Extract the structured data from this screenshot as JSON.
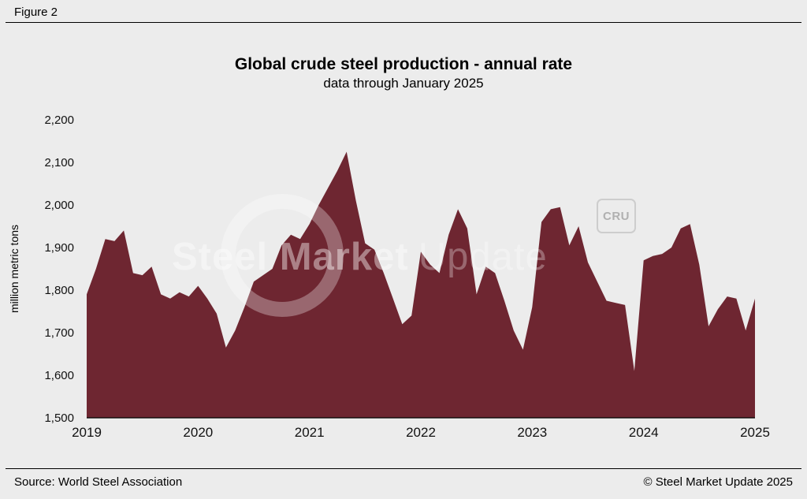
{
  "figure_label": "Figure 2",
  "header": {
    "title": "Global crude steel production - annual rate",
    "subtitle": "data through January 2025"
  },
  "watermark": {
    "text_primary": "Steel Market",
    "text_secondary": "Update",
    "badge": "CRU"
  },
  "footer": {
    "source": "Source: World Steel Association",
    "copyright": "© Steel Market Update 2025"
  },
  "colors": {
    "background": "#ececec",
    "area": "#6e2631",
    "axis": "#000000",
    "text": "#111111"
  },
  "chart_data": {
    "type": "area",
    "title": "Global crude steel production - annual rate",
    "subtitle": "data through January 2025",
    "ylabel": "million metric tons",
    "xlabel": "",
    "ylim": [
      1500,
      2200
    ],
    "yticks": [
      1500,
      1600,
      1700,
      1800,
      1900,
      2000,
      2100,
      2200
    ],
    "x_tick_years": [
      "2019",
      "2020",
      "2021",
      "2022",
      "2023",
      "2024",
      "2025"
    ],
    "x_start": "2019-01",
    "x_end": "2025-01",
    "grid": false,
    "legend": "none",
    "series_name": "Global crude steel production, annualized rate (million metric tons)",
    "values": [
      1790,
      1850,
      1920,
      1915,
      1940,
      1840,
      1835,
      1855,
      1790,
      1780,
      1795,
      1785,
      1810,
      1780,
      1745,
      1665,
      1705,
      1760,
      1820,
      1835,
      1850,
      1905,
      1930,
      1920,
      1955,
      2000,
      2040,
      2080,
      2125,
      2010,
      1910,
      1895,
      1840,
      1780,
      1720,
      1740,
      1890,
      1860,
      1840,
      1930,
      1990,
      1945,
      1790,
      1855,
      1840,
      1775,
      1705,
      1660,
      1760,
      1960,
      1990,
      1995,
      1905,
      1950,
      1865,
      1820,
      1775,
      1770,
      1765,
      1610,
      1870,
      1880,
      1885,
      1900,
      1945,
      1955,
      1860,
      1715,
      1755,
      1785,
      1780,
      1705,
      1780
    ]
  }
}
